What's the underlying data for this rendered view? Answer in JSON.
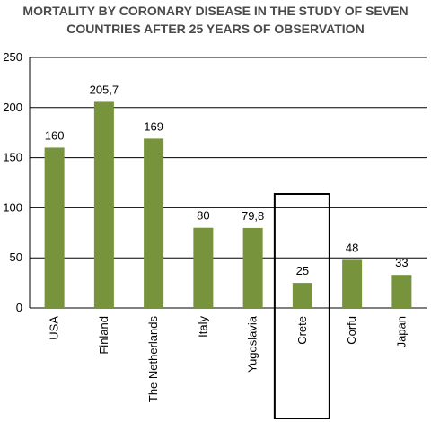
{
  "chart_data": {
    "type": "bar",
    "title_lines": [
      "MORTALITY BY CORONARY DISEASE IN THE STUDY OF SEVEN",
      "COUNTRIES AFTER 25 YEARS OF OBSERVATION"
    ],
    "categories": [
      "USA",
      "Finland",
      "The Netherlands",
      "Italy",
      "Yugoslavia",
      "Crete",
      "Corfu",
      "Japan"
    ],
    "values": [
      160,
      205.7,
      169,
      80,
      79.8,
      25,
      48,
      33
    ],
    "data_labels": [
      "160",
      "205,7",
      "169",
      "80",
      "79,8",
      "25",
      "48",
      "33"
    ],
    "yticks": [
      0,
      50,
      100,
      150,
      200,
      250
    ],
    "ylim": [
      0,
      250
    ],
    "grid": true,
    "highlighted_category": "Crete",
    "colors": {
      "bar": "#77933c",
      "grid": "#000000",
      "highlight_box": "#000000"
    }
  }
}
